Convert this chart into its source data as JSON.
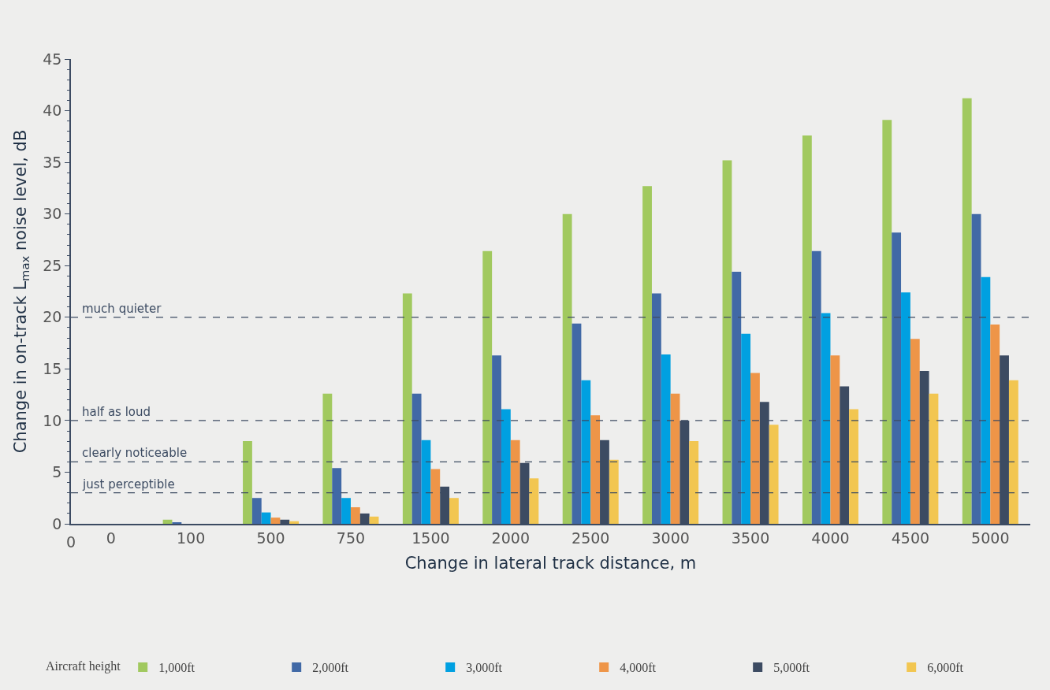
{
  "chart_data": {
    "type": "bar",
    "xlabel": "Change in lateral track distance, m",
    "ylabel": "Change in on-track L$_{max}$ noise level, dB",
    "legend_title": "Aircraft height",
    "categories": [
      "0",
      "100",
      "500",
      "750",
      "1500",
      "2000",
      "2500",
      "3000",
      "3500",
      "4000",
      "4500",
      "5000"
    ],
    "series": [
      {
        "name": "1,000ft",
        "color": "#a1c95f",
        "values": [
          0,
          0.4,
          8.0,
          12.6,
          22.3,
          26.4,
          30.0,
          32.7,
          35.2,
          37.6,
          39.1,
          41.2
        ]
      },
      {
        "name": "2,000ft",
        "color": "#4169a6",
        "values": [
          0,
          0.1,
          2.5,
          5.4,
          12.6,
          16.3,
          19.4,
          22.3,
          24.4,
          26.4,
          28.2,
          30.0
        ]
      },
      {
        "name": "3,000ft",
        "color": "#00a0e1",
        "values": [
          0,
          0,
          1.1,
          2.5,
          8.1,
          11.1,
          13.9,
          16.4,
          18.4,
          20.4,
          22.4,
          23.9
        ]
      },
      {
        "name": "4,000ft",
        "color": "#ee9548",
        "values": [
          0,
          0,
          0.6,
          1.6,
          5.3,
          8.1,
          10.5,
          12.6,
          14.6,
          16.3,
          17.9,
          19.3
        ]
      },
      {
        "name": "5,000ft",
        "color": "#3c4b62",
        "values": [
          0,
          0,
          0.4,
          1.0,
          3.6,
          5.9,
          8.1,
          10.0,
          11.8,
          13.3,
          14.8,
          16.3
        ]
      },
      {
        "name": "6,000ft",
        "color": "#f2c651",
        "values": [
          0,
          0,
          0.25,
          0.7,
          2.5,
          4.4,
          6.2,
          8.0,
          9.6,
          11.1,
          12.6,
          13.9
        ]
      }
    ],
    "ylim": [
      0,
      45
    ],
    "yticks": [
      0,
      5,
      10,
      15,
      20,
      25,
      30,
      35,
      40,
      45
    ],
    "ref_lines": [
      {
        "axis": "y",
        "value": 3,
        "label": "just perceptible",
        "color": "#3c4b62",
        "line_style": "dashed"
      },
      {
        "axis": "y",
        "value": 6,
        "label": "clearly noticeable",
        "color": "#3c4b62",
        "line_style": "dashed"
      },
      {
        "axis": "y",
        "value": 10,
        "label": "half as loud",
        "color": "#3c4b62",
        "line_style": "dashed"
      },
      {
        "axis": "y",
        "value": 20,
        "label": "much quieter",
        "color": "#3c4b62",
        "line_style": "dashed"
      }
    ],
    "annotations": [
      "0"
    ],
    "legend": "bottom",
    "grid": false
  }
}
